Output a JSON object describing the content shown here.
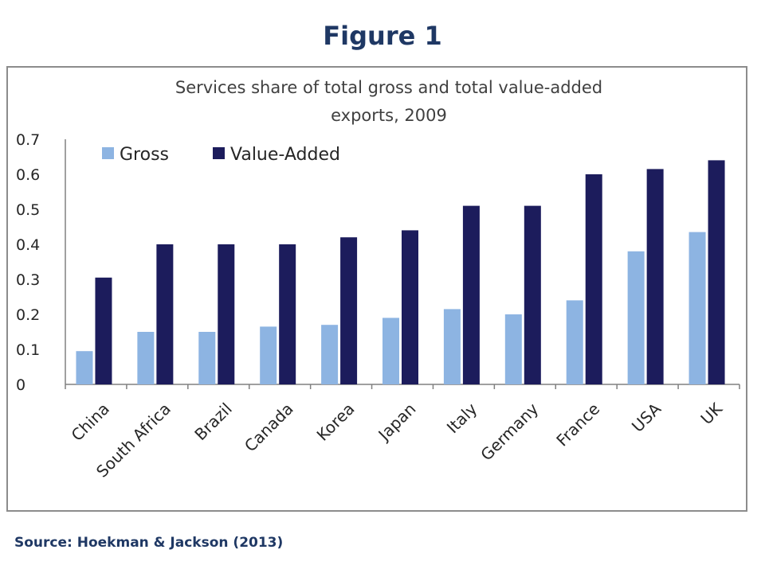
{
  "figure_title": "Figure 1",
  "source_note": "Source: Hoekman & Jackson (2013)",
  "colors": {
    "gross": "#8db4e2",
    "value_added": "#1c1c5c",
    "axis": "#808080",
    "title": "#1f3864"
  },
  "chart_data": {
    "type": "bar",
    "title_lines": [
      "Services share of total gross and total value-added",
      "exports, 2009"
    ],
    "categories": [
      "China",
      "South Africa",
      "Brazil",
      "Canada",
      "Korea",
      "Japan",
      "Italy",
      "Germany",
      "France",
      "USA",
      "UK"
    ],
    "series": [
      {
        "name": "Gross",
        "values": [
          0.095,
          0.15,
          0.15,
          0.165,
          0.17,
          0.19,
          0.215,
          0.2,
          0.24,
          0.38,
          0.435
        ]
      },
      {
        "name": "Value-Added",
        "values": [
          0.305,
          0.4,
          0.4,
          0.4,
          0.42,
          0.44,
          0.51,
          0.51,
          0.6,
          0.615,
          0.64
        ]
      }
    ],
    "yticks": [
      "0",
      "0.1",
      "0.2",
      "0.3",
      "0.4",
      "0.5",
      "0.6",
      "0.7"
    ],
    "ylim": [
      0,
      0.7
    ],
    "xlabel": "",
    "ylabel": "",
    "legend_position": "top-left",
    "grid": false
  }
}
